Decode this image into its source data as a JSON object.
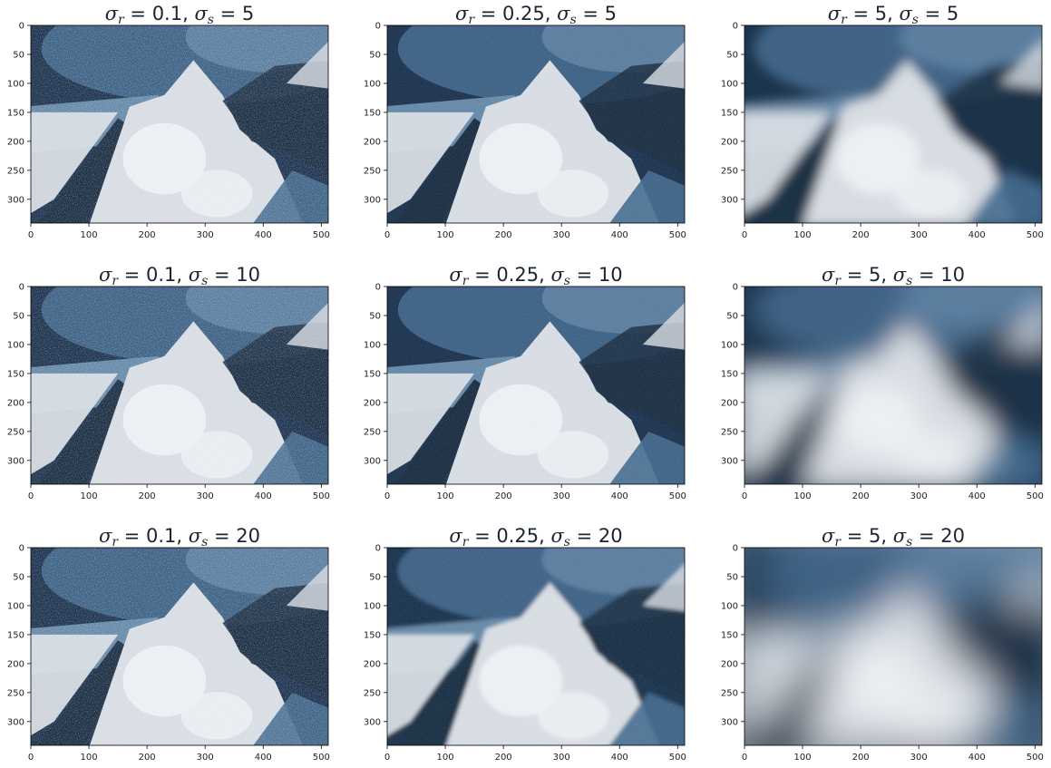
{
  "figure": {
    "panels": [
      {
        "row": 0,
        "col": 0,
        "sigma_r": "0.1",
        "sigma_s": "5"
      },
      {
        "row": 0,
        "col": 1,
        "sigma_r": "0.25",
        "sigma_s": "5"
      },
      {
        "row": 0,
        "col": 2,
        "sigma_r": "5",
        "sigma_s": "5"
      },
      {
        "row": 1,
        "col": 0,
        "sigma_r": "0.1",
        "sigma_s": "10"
      },
      {
        "row": 1,
        "col": 1,
        "sigma_r": "0.25",
        "sigma_s": "10"
      },
      {
        "row": 1,
        "col": 2,
        "sigma_r": "5",
        "sigma_s": "10"
      },
      {
        "row": 2,
        "col": 0,
        "sigma_r": "0.1",
        "sigma_s": "20"
      },
      {
        "row": 2,
        "col": 1,
        "sigma_r": "0.25",
        "sigma_s": "20"
      },
      {
        "row": 2,
        "col": 2,
        "sigma_r": "5",
        "sigma_s": "20"
      }
    ],
    "x_ticks": [
      "0",
      "100",
      "200",
      "300",
      "400",
      "500"
    ],
    "y_ticks": [
      "0",
      "50",
      "100",
      "150",
      "200",
      "250",
      "300"
    ],
    "x_range": [
      0,
      512
    ],
    "y_range": [
      0,
      341
    ],
    "image_subject": "snowy mountain peak under cloudy sky",
    "colors": {
      "sky_dark": "#1f3550",
      "sky_mid": "#456b8f",
      "mid_blue": "#6f93b2",
      "snow": "#d8dde3",
      "snow_bright": "#eef1f4",
      "rock_dark": "#1e3044",
      "title_text": "#1c2530"
    }
  }
}
